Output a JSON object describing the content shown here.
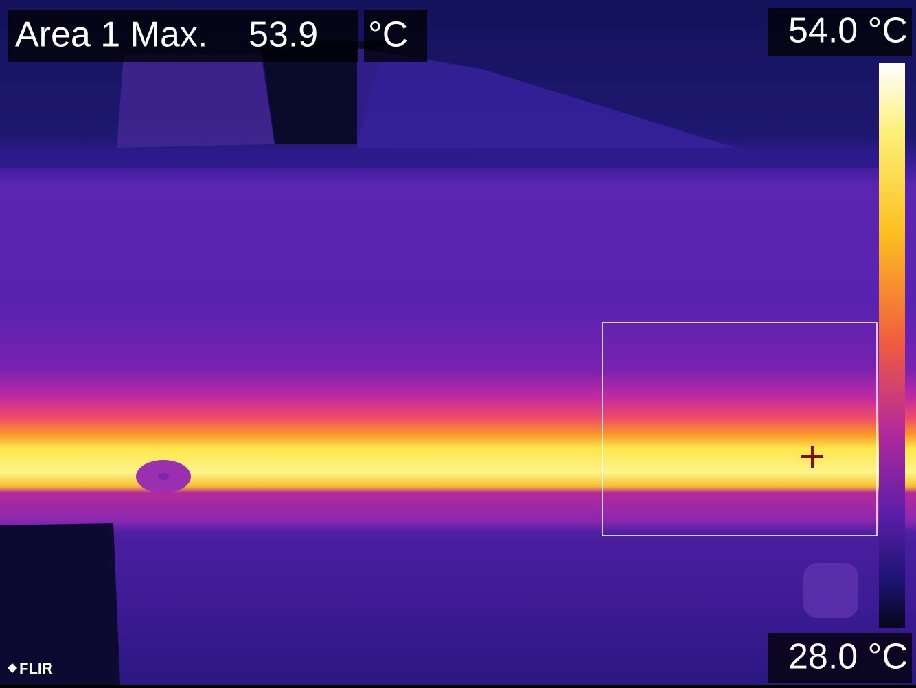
{
  "measurement": {
    "label": "Area 1 Max.",
    "value": "53.9",
    "unit": "°C"
  },
  "scale": {
    "max": "54.0 °C",
    "min": "28.0 °C"
  },
  "brand": "FLIR"
}
